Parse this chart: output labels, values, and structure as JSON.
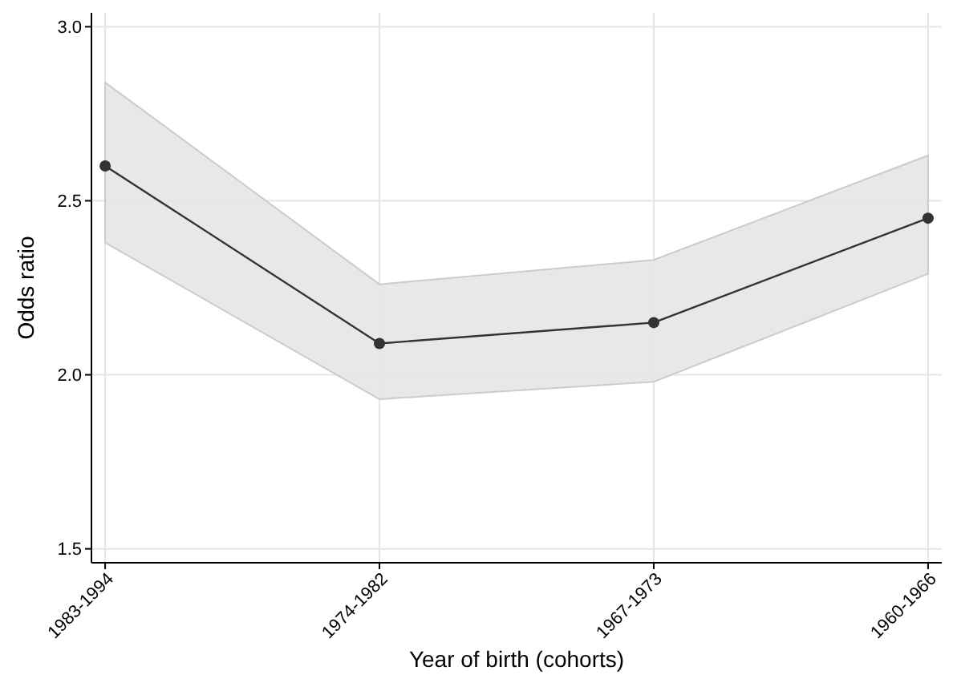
{
  "chart_data": {
    "type": "line",
    "xlabel": "Year of birth (cohorts)",
    "ylabel": "Odds ratio",
    "categories": [
      "1983-1994",
      "1974-1982",
      "1967-1973",
      "1960-1966"
    ],
    "series": [
      {
        "color": "#333333",
        "values": [
          2.6,
          2.09,
          2.15,
          2.45
        ],
        "lower": [
          2.38,
          1.93,
          1.98,
          2.29
        ],
        "upper": [
          2.84,
          2.26,
          2.33,
          2.63
        ]
      }
    ],
    "ylim": [
      1.46,
      3.04
    ],
    "yticks": [
      {
        "value": 1.5,
        "label": "1.5"
      },
      {
        "value": 2,
        "label": "2.0"
      },
      {
        "value": 2.5,
        "label": "2.5"
      },
      {
        "value": 3,
        "label": "3.0"
      }
    ],
    "grid": true,
    "marker": "circle",
    "line_style": "solid"
  }
}
